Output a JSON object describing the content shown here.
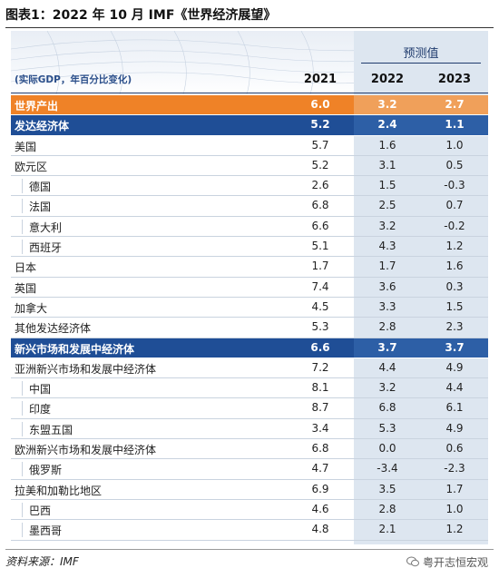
{
  "title": "图表1：2022 年 10 月 IMF《世界经济展望》",
  "unit_note": "(实际GDP，年百分比变化)",
  "forecast_label": "预测值",
  "columns": [
    "2021",
    "2022",
    "2023"
  ],
  "rows": [
    {
      "name": "世界产出",
      "values": [
        "6.0",
        "3.2",
        "2.7"
      ],
      "style": "world"
    },
    {
      "name": "发达经济体",
      "values": [
        "5.2",
        "2.4",
        "1.1"
      ],
      "style": "group"
    },
    {
      "name": "美国",
      "values": [
        "5.7",
        "1.6",
        "1.0"
      ],
      "style": "level1"
    },
    {
      "name": "欧元区",
      "values": [
        "5.2",
        "3.1",
        "0.5"
      ],
      "style": "level1"
    },
    {
      "name": "德国",
      "values": [
        "2.6",
        "1.5",
        "-0.3"
      ],
      "style": "level2"
    },
    {
      "name": "法国",
      "values": [
        "6.8",
        "2.5",
        "0.7"
      ],
      "style": "level2"
    },
    {
      "name": "意大利",
      "values": [
        "6.6",
        "3.2",
        "-0.2"
      ],
      "style": "level2"
    },
    {
      "name": "西班牙",
      "values": [
        "5.1",
        "4.3",
        "1.2"
      ],
      "style": "level2"
    },
    {
      "name": "日本",
      "values": [
        "1.7",
        "1.7",
        "1.6"
      ],
      "style": "level1"
    },
    {
      "name": "英国",
      "values": [
        "7.4",
        "3.6",
        "0.3"
      ],
      "style": "level1"
    },
    {
      "name": "加拿大",
      "values": [
        "4.5",
        "3.3",
        "1.5"
      ],
      "style": "level1"
    },
    {
      "name": "其他发达经济体",
      "values": [
        "5.3",
        "2.8",
        "2.3"
      ],
      "style": "level1"
    },
    {
      "name": "新兴市场和发展中经济体",
      "values": [
        "6.6",
        "3.7",
        "3.7"
      ],
      "style": "group"
    },
    {
      "name": "亚洲新兴市场和发展中经济体",
      "values": [
        "7.2",
        "4.4",
        "4.9"
      ],
      "style": "level1"
    },
    {
      "name": "中国",
      "values": [
        "8.1",
        "3.2",
        "4.4"
      ],
      "style": "level2"
    },
    {
      "name": "印度",
      "values": [
        "8.7",
        "6.8",
        "6.1"
      ],
      "style": "level2"
    },
    {
      "name": "东盟五国",
      "values": [
        "3.4",
        "5.3",
        "4.9"
      ],
      "style": "level2"
    },
    {
      "name": "欧洲新兴市场和发展中经济体",
      "values": [
        "6.8",
        "0.0",
        "0.6"
      ],
      "style": "level1"
    },
    {
      "name": "俄罗斯",
      "values": [
        "4.7",
        "-3.4",
        "-2.3"
      ],
      "style": "level2"
    },
    {
      "name": "拉美和加勒比地区",
      "values": [
        "6.9",
        "3.5",
        "1.7"
      ],
      "style": "level1"
    },
    {
      "name": "巴西",
      "values": [
        "4.6",
        "2.8",
        "1.0"
      ],
      "style": "level2"
    },
    {
      "name": "墨西哥",
      "values": [
        "4.8",
        "2.1",
        "1.2"
      ],
      "style": "level2"
    }
  ],
  "source": "资料来源：IMF",
  "watermark": "粤开志恒宏观",
  "colors": {
    "world_row": "#ef8227",
    "group_row": "#1f4e96",
    "forecast_shade": "#dde6f0",
    "accent_text": "#2a4e8a"
  }
}
